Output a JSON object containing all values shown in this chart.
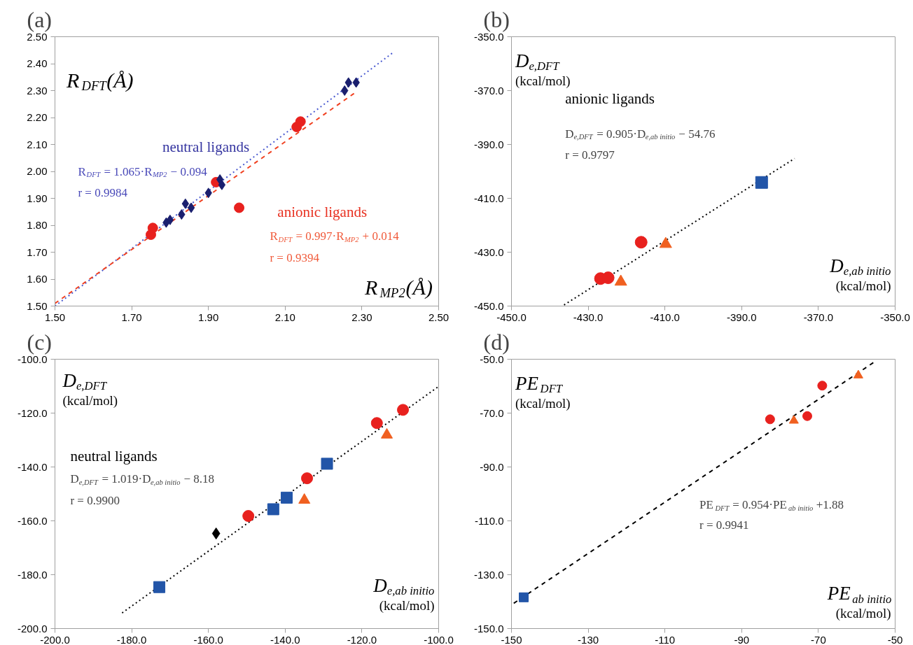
{
  "chart_data": [
    {
      "type": "scatter",
      "title": "(a)",
      "xlabel": "R$_{MP2}$(Å)",
      "ylabel": "R$_{DFT}$(Å)",
      "xlim": [
        1.5,
        2.5
      ],
      "ylim": [
        1.5,
        2.5
      ],
      "xticks": [
        {
          "value": 1.5,
          "label": "1.50"
        },
        {
          "value": 1.7,
          "label": "1.70"
        },
        {
          "value": 1.9,
          "label": "1.90"
        },
        {
          "value": 2.1,
          "label": "2.10"
        },
        {
          "value": 2.3,
          "label": "2.30"
        },
        {
          "value": 2.5,
          "label": "2.50"
        }
      ],
      "yticks": [
        {
          "value": 1.5,
          "label": "1.50"
        },
        {
          "value": 1.6,
          "label": "1.60"
        },
        {
          "value": 1.7,
          "label": "1.70"
        },
        {
          "value": 1.8,
          "label": "1.80"
        },
        {
          "value": 1.9,
          "label": "1.90"
        },
        {
          "value": 2.0,
          "label": "2.00"
        },
        {
          "value": 2.1,
          "label": "2.10"
        },
        {
          "value": 2.2,
          "label": "2.20"
        },
        {
          "value": 2.3,
          "label": "2.30"
        },
        {
          "value": 2.4,
          "label": "2.40"
        },
        {
          "value": 2.5,
          "label": "2.50"
        }
      ],
      "annotations": [
        "neutral ligands",
        "R$_{DFT}$ = 1.065·R$_{MP2}$ − 0.094",
        "r = 0.9984",
        "anionic ligands",
        "R$_{DFT}$ = 0.997·R$_{MP2}$ + 0.014",
        "r = 0.9394"
      ],
      "series": [
        {
          "type": "line",
          "color": "#4a5ad0",
          "line_style": "dotted",
          "x": [
            1.5,
            2.38
          ],
          "values": [
            1.5,
            2.44
          ]
        },
        {
          "type": "line",
          "color": "#f04020",
          "line_style": "dashed",
          "x": [
            1.5,
            2.28
          ],
          "values": [
            1.51,
            2.29
          ]
        },
        {
          "type": "scatter",
          "color": "#e8211e",
          "marker": "circle",
          "x": [
            1.75,
            1.755,
            1.92,
            1.98,
            2.13,
            2.14
          ],
          "values": [
            1.765,
            1.79,
            1.96,
            1.865,
            2.165,
            2.185
          ]
        },
        {
          "type": "scatter",
          "color": "#1a1f6e",
          "marker": "diamond",
          "x": [
            1.79,
            1.8,
            1.83,
            1.84,
            1.855,
            1.9,
            1.93,
            1.935,
            2.255,
            2.265,
            2.285
          ],
          "values": [
            1.81,
            1.82,
            1.84,
            1.88,
            1.865,
            1.92,
            1.97,
            1.95,
            2.3,
            2.33,
            2.33
          ]
        }
      ]
    },
    {
      "type": "scatter",
      "title": "(b)",
      "xlabel": "D$_{e,ab initio}$\n(kcal/mol)",
      "ylabel": "D$_{e,DFT}$\n(kcal/mol)",
      "xlim": [
        -450,
        -350
      ],
      "ylim": [
        -450,
        -350
      ],
      "xticks": [
        {
          "value": -450,
          "label": "-450.0"
        },
        {
          "value": -430,
          "label": "-430.0"
        },
        {
          "value": -410,
          "label": "-410.0"
        },
        {
          "value": -390,
          "label": "-390.0"
        },
        {
          "value": -370,
          "label": "-370.0"
        },
        {
          "value": -350,
          "label": "-350.0"
        }
      ],
      "yticks": [
        {
          "value": -450,
          "label": "-450.0"
        },
        {
          "value": -430,
          "label": "-430.0"
        },
        {
          "value": -410,
          "label": "-410.0"
        },
        {
          "value": -390,
          "label": "-390.0"
        },
        {
          "value": -370,
          "label": "-370.0"
        },
        {
          "value": -350,
          "label": "-350.0"
        }
      ],
      "annotations": [
        "anionic ligands",
        "D$_{e,DFT}$ = 0.905·D$_{e,ab initio}$ − 54.76",
        "r = 0.9797"
      ],
      "series": [
        {
          "type": "line",
          "color": "#000000",
          "line_style": "dotted",
          "x": [
            -436.3,
            -376.2
          ],
          "values": [
            -449.6,
            -395.2
          ]
        },
        {
          "type": "scatter",
          "color": "#2255a8",
          "marker": "square",
          "x": [
            -384.8
          ],
          "values": [
            -404.1
          ]
        },
        {
          "type": "scatter",
          "color": "#e8211e",
          "marker": "circle",
          "x": [
            -426.8,
            -424.8,
            -416.2
          ],
          "values": [
            -439.8,
            -439.5,
            -426.3
          ]
        },
        {
          "type": "scatter",
          "color": "#f06020",
          "marker": "triangle",
          "x": [
            -421.5,
            -409.8
          ],
          "values": [
            -441,
            -427
          ]
        }
      ]
    },
    {
      "type": "scatter",
      "title": "(c)",
      "xlabel": "D$_{e,ab initio}$\n(kcal/mol)",
      "ylabel": "D$_{e,DFT}$\n(kcal/mol)",
      "xlim": [
        -200,
        -100
      ],
      "ylim": [
        -200,
        -100
      ],
      "xticks": [
        {
          "value": -200,
          "label": "-200.0"
        },
        {
          "value": -180,
          "label": "-180.0"
        },
        {
          "value": -160,
          "label": "-160.0"
        },
        {
          "value": -140,
          "label": "-140.0"
        },
        {
          "value": -120,
          "label": "-120.0"
        },
        {
          "value": -100,
          "label": "-100.0"
        }
      ],
      "yticks": [
        {
          "value": -200,
          "label": "-200.0"
        },
        {
          "value": -180,
          "label": "-180.0"
        },
        {
          "value": -160,
          "label": "-160.0"
        },
        {
          "value": -140,
          "label": "-140.0"
        },
        {
          "value": -120,
          "label": "-120.0"
        },
        {
          "value": -100,
          "label": "-100.0"
        }
      ],
      "annotations": [
        "neutral ligands",
        "D$_{e,DFT}$ = 1.019·D$_{e,ab initio}$ − 8.18",
        "r = 0.9900"
      ],
      "series": [
        {
          "type": "line",
          "color": "#000000",
          "line_style": "dotted",
          "x": [
            -182.5,
            -100
          ],
          "values": [
            -194.2,
            -110.1
          ]
        },
        {
          "type": "scatter",
          "color": "#2255a8",
          "marker": "square",
          "x": [
            -172.8,
            -143.1,
            -139.6,
            -129.1
          ],
          "values": [
            -184.6,
            -155.7,
            -151.4,
            -138.8
          ]
        },
        {
          "type": "scatter",
          "color": "#e8211e",
          "marker": "circle",
          "x": [
            -149.6,
            -134.3,
            -116.1,
            -109.3
          ],
          "values": [
            -158.2,
            -144.2,
            -123.7,
            -118.8
          ]
        },
        {
          "type": "scatter",
          "color": "#f06020",
          "marker": "triangle",
          "x": [
            -135.0,
            -113.5
          ],
          "values": [
            -152.3,
            -128.1
          ]
        },
        {
          "type": "scatter",
          "color": "#000000",
          "marker": "diamond",
          "x": [
            -158.0
          ],
          "values": [
            -164.7
          ]
        }
      ]
    },
    {
      "type": "scatter",
      "title": "(d)",
      "xlabel": "PE$_{ab initio}$\n(kcal/mol)",
      "ylabel": "PE$_{DFT}$\n(kcal/mol)",
      "xlim": [
        -150,
        -50
      ],
      "ylim": [
        -150,
        -50
      ],
      "xticks": [
        -150,
        -130,
        -110,
        -90,
        -70,
        -50
      ],
      "yticks": [
        {
          "value": -150,
          "label": "-150.0"
        },
        {
          "value": -130,
          "label": "-130.0"
        },
        {
          "value": -110,
          "label": "-110.0"
        },
        {
          "value": -90,
          "label": "-90.0"
        },
        {
          "value": -70,
          "label": "-70.0"
        },
        {
          "value": -50,
          "label": "-50.0"
        }
      ],
      "annotations": [
        "PE$_{DFT}$ = 0.954·PE$_{ab initio}$ +1.88",
        "r = 0.9941"
      ],
      "series": [
        {
          "type": "line",
          "color": "#000000",
          "line_style": "dashed",
          "x": [
            -149.4,
            -55.5
          ],
          "values": [
            -140.6,
            -51.1
          ]
        },
        {
          "type": "scatter",
          "color": "#2255a8",
          "marker": "square",
          "x": [
            -146.8
          ],
          "values": [
            -138.4
          ]
        },
        {
          "type": "scatter",
          "color": "#e8211e",
          "marker": "circle",
          "x": [
            -82.6,
            -72.9,
            -69.0
          ],
          "values": [
            -72.3,
            -71.1,
            -59.8
          ]
        },
        {
          "type": "scatter",
          "color": "#f06020",
          "marker": "triangle",
          "x": [
            -76.4,
            -59.6
          ],
          "values": [
            -72.8,
            -56.0
          ]
        }
      ]
    }
  ]
}
